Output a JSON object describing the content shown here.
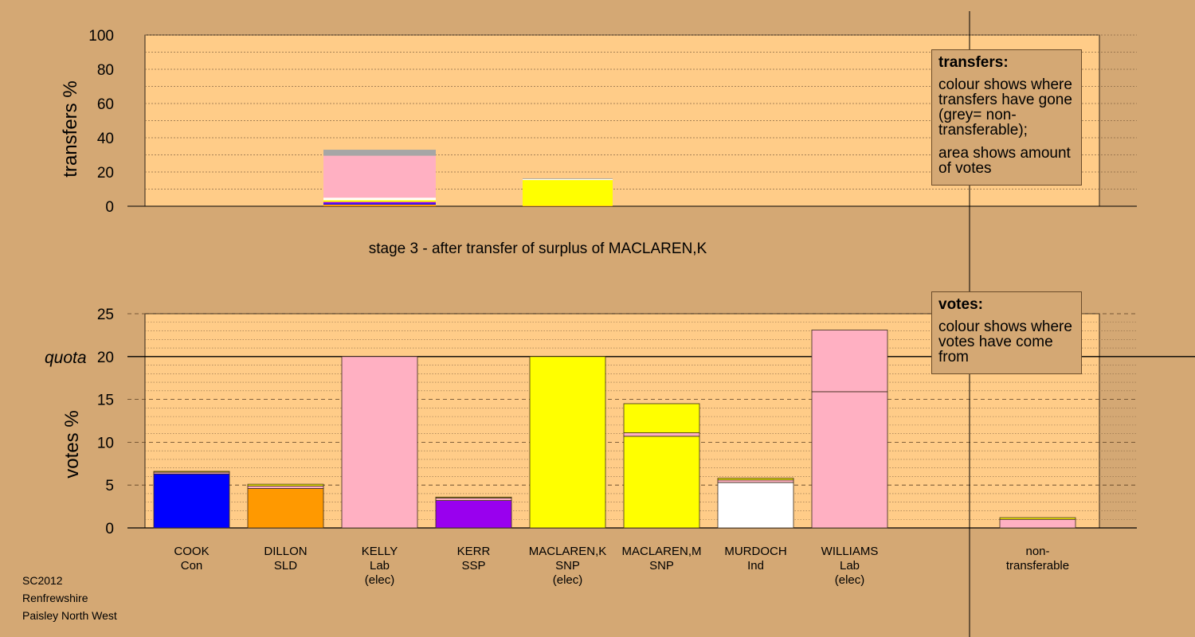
{
  "chart_data": [
    {
      "type": "bar",
      "panel": "transfers",
      "ylabel": "transfers %",
      "ylim": [
        0,
        100
      ],
      "yticks": [
        0,
        20,
        40,
        60,
        80,
        100
      ],
      "stage_title": "stage 3 - after transfer of surplus of MACLAREN,K",
      "bars": [
        {
          "category_index": 2,
          "segments": [
            {
              "to": "DILLON",
              "value": 1.0,
              "color": "#ff9900"
            },
            {
              "to": "COOK",
              "value": 0.7,
              "color": "#0000ff"
            },
            {
              "to": "KERR",
              "value": 0.8,
              "color": "#9900ee"
            },
            {
              "to": "MACLAREN,M",
              "value": 1.0,
              "color": "#ffff00"
            },
            {
              "to": "MURDOCH",
              "value": 1.5,
              "color": "#ffffff"
            },
            {
              "to": "WILLIAMS",
              "value": 24.5,
              "color": "#ffb0c2"
            },
            {
              "to": "non-transferable",
              "value": 3.5,
              "color": "#a6a6a6"
            }
          ]
        },
        {
          "category_index": 4,
          "segments": [
            {
              "to": "DILLON",
              "value": 0.3,
              "color": "#ff9900"
            },
            {
              "to": "MACLAREN,M",
              "value": 15.0,
              "color": "#ffff00"
            },
            {
              "to": "MURDOCH",
              "value": 0.6,
              "color": "#ffffff"
            },
            {
              "to": "non-transferable",
              "value": 0.4,
              "color": "#a6a6a6"
            }
          ]
        }
      ],
      "legend": {
        "title": "transfers:",
        "lines": [
          "colour shows where transfers have gone (grey= non-transferable);",
          "area shows amount of votes"
        ]
      }
    },
    {
      "type": "bar",
      "panel": "votes",
      "ylabel": "votes %",
      "ylim": [
        0,
        25
      ],
      "yticks": [
        0,
        5,
        10,
        15,
        20,
        25
      ],
      "quota_label": "quota",
      "quota": 20,
      "categories": [
        {
          "name": "COOK",
          "party": "Con",
          "note": ""
        },
        {
          "name": "DILLON",
          "party": "SLD",
          "note": ""
        },
        {
          "name": "KELLY",
          "party": "Lab",
          "note": "(elec)"
        },
        {
          "name": "KERR",
          "party": "SSP",
          "note": ""
        },
        {
          "name": "MACLAREN,K",
          "party": "SNP",
          "note": "(elec)"
        },
        {
          "name": "MACLAREN,M",
          "party": "SNP",
          "note": ""
        },
        {
          "name": "MURDOCH",
          "party": "Ind",
          "note": ""
        },
        {
          "name": "WILLIAMS",
          "party": "Lab",
          "note": "(elec)"
        },
        {
          "name": "",
          "party": "",
          "note": ""
        },
        {
          "name": "non-",
          "party": "transferable",
          "note": ""
        }
      ],
      "stacks": [
        [
          {
            "value": 6.3,
            "color": "#0000ff"
          },
          {
            "value": 0.2,
            "color": "#ffb0c2"
          },
          {
            "value": 0.1,
            "color": "#ffff00"
          }
        ],
        [
          {
            "value": 4.6,
            "color": "#ff9900"
          },
          {
            "value": 0.3,
            "color": "#ffb0c2"
          },
          {
            "value": 0.2,
            "color": "#ffff00"
          }
        ],
        [
          {
            "value": 20.0,
            "color": "#ffb0c2"
          }
        ],
        [
          {
            "value": 3.2,
            "color": "#9900ee"
          },
          {
            "value": 0.3,
            "color": "#ffb0c2"
          },
          {
            "value": 0.1,
            "color": "#ffff00"
          }
        ],
        [
          {
            "value": 20.0,
            "color": "#ffff00"
          }
        ],
        [
          {
            "value": 10.7,
            "color": "#ffff00"
          },
          {
            "value": 0.4,
            "color": "#ffb0c2"
          },
          {
            "value": 3.4,
            "color": "#ffff00"
          }
        ],
        [
          {
            "value": 5.3,
            "color": "#ffffff"
          },
          {
            "value": 0.3,
            "color": "#ffb0c2"
          },
          {
            "value": 0.2,
            "color": "#ffff00"
          }
        ],
        [
          {
            "value": 15.9,
            "color": "#ffb0c2"
          },
          {
            "value": 7.2,
            "color": "#ffb0c2"
          }
        ],
        [],
        [
          {
            "value": 1.0,
            "color": "#ffb0c2"
          },
          {
            "value": 0.2,
            "color": "#ffff00"
          }
        ]
      ],
      "legend": {
        "title": "votes:",
        "lines": [
          "colour shows where votes have come from"
        ]
      }
    }
  ],
  "footer": {
    "line1": "SC2012",
    "line2": "Renfrewshire",
    "line3": "Paisley North West"
  },
  "colors": {
    "background": "#d4a874",
    "plot_fill": "#ffcc88",
    "grey_nontransferable": "#a6a6a6"
  }
}
